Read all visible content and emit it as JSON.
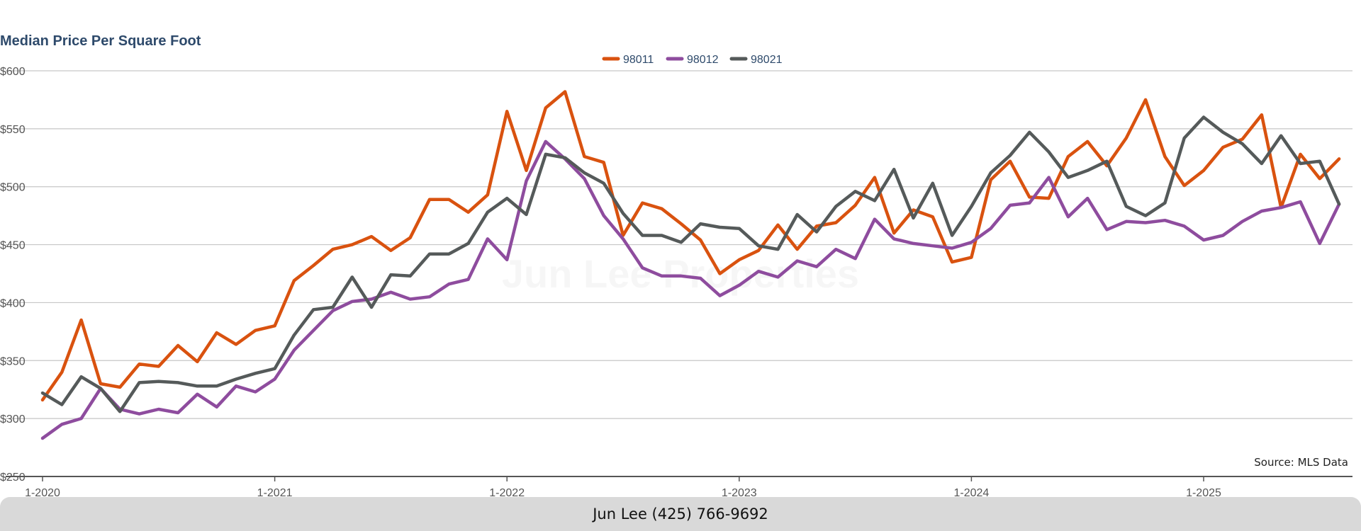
{
  "footer": {
    "contact": "Jun Lee (425) 766-9692"
  },
  "chart_data": {
    "type": "line",
    "title": "Median Price Per Square Foot",
    "watermark": "Jun Lee Properties",
    "source": "Source: MLS Data",
    "legend_position": "top-center",
    "grid": true,
    "ylim": [
      250,
      600
    ],
    "y_ticks": [
      250,
      300,
      350,
      400,
      450,
      500,
      550,
      600
    ],
    "y_tick_labels": [
      "$250",
      "$300",
      "$350",
      "$400",
      "$450",
      "$500",
      "$550",
      "$600"
    ],
    "x_ticks": [
      0,
      12,
      24,
      36,
      48,
      60
    ],
    "x_tick_labels": [
      "1-2020",
      "1-2021",
      "1-2022",
      "1-2023",
      "1-2024",
      "1-2025"
    ],
    "x_start": "2020-01",
    "x_step": "1 month",
    "series": [
      {
        "name": "98011",
        "color": "#d9520f",
        "values": [
          316,
          340,
          385,
          330,
          327,
          347,
          345,
          363,
          349,
          374,
          364,
          376,
          380,
          419,
          432,
          446,
          450,
          457,
          445,
          456,
          489,
          489,
          478,
          493,
          565,
          514,
          568,
          582,
          526,
          521,
          458,
          486,
          481,
          468,
          454,
          425,
          437,
          445,
          467,
          446,
          466,
          469,
          484,
          508,
          460,
          480,
          474,
          435,
          439,
          506,
          522,
          491,
          490,
          526,
          539,
          518,
          542,
          575,
          526,
          501,
          514,
          534,
          541,
          562,
          482,
          528,
          507,
          524
        ]
      },
      {
        "name": "98012",
        "color": "#8e4c9e",
        "values": [
          283,
          295,
          300,
          326,
          308,
          304,
          308,
          305,
          321,
          310,
          328,
          323,
          334,
          359,
          376,
          393,
          401,
          403,
          409,
          403,
          405,
          416,
          420,
          455,
          437,
          505,
          539,
          524,
          507,
          475,
          455,
          430,
          423,
          423,
          421,
          406,
          415,
          427,
          422,
          436,
          431,
          446,
          438,
          472,
          455,
          451,
          449,
          447,
          452,
          464,
          484,
          486,
          508,
          474,
          490,
          463,
          470,
          469,
          471,
          466,
          454,
          458,
          470,
          479,
          482,
          487,
          451,
          485
        ]
      },
      {
        "name": "98021",
        "color": "#555a5a",
        "values": [
          322,
          312,
          336,
          326,
          306,
          331,
          332,
          331,
          328,
          328,
          334,
          339,
          343,
          372,
          394,
          396,
          422,
          396,
          424,
          423,
          442,
          442,
          451,
          478,
          490,
          476,
          528,
          525,
          512,
          503,
          477,
          458,
          458,
          452,
          468,
          465,
          464,
          449,
          446,
          476,
          461,
          483,
          496,
          488,
          515,
          473,
          503,
          458,
          483,
          512,
          527,
          547,
          530,
          508,
          514,
          522,
          483,
          475,
          486,
          542,
          560,
          547,
          537,
          520,
          544,
          520,
          522,
          485
        ]
      }
    ]
  }
}
